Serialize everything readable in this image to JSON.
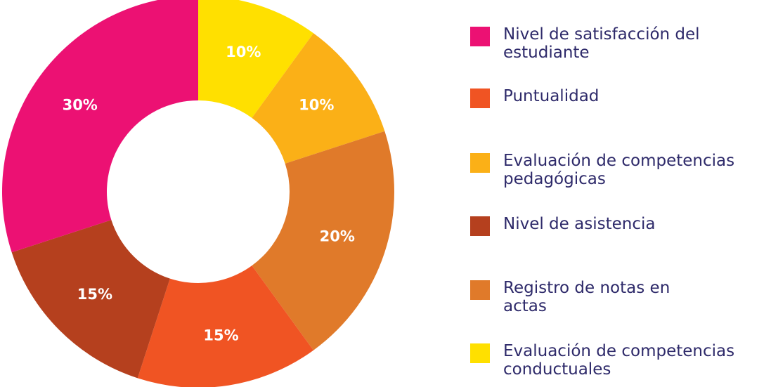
{
  "chart_data": {
    "type": "pie",
    "donut": true,
    "categories": [
      "Evaluación de competencias conductuales",
      "Evaluación de competencias pedagógicas",
      "Registro de notas en actas",
      "Puntualidad",
      "Nivel de asistencia",
      "Nivel de satisfacción del estudiante"
    ],
    "values": [
      10,
      10,
      20,
      15,
      15,
      30
    ],
    "value_labels": [
      "10%",
      "10%",
      "20%",
      "15%",
      "15%",
      "30%"
    ],
    "colors": [
      "#ffe000",
      "#fbb017",
      "#e07a2a",
      "#f05423",
      "#b5401e",
      "#ec1173"
    ]
  }
}
